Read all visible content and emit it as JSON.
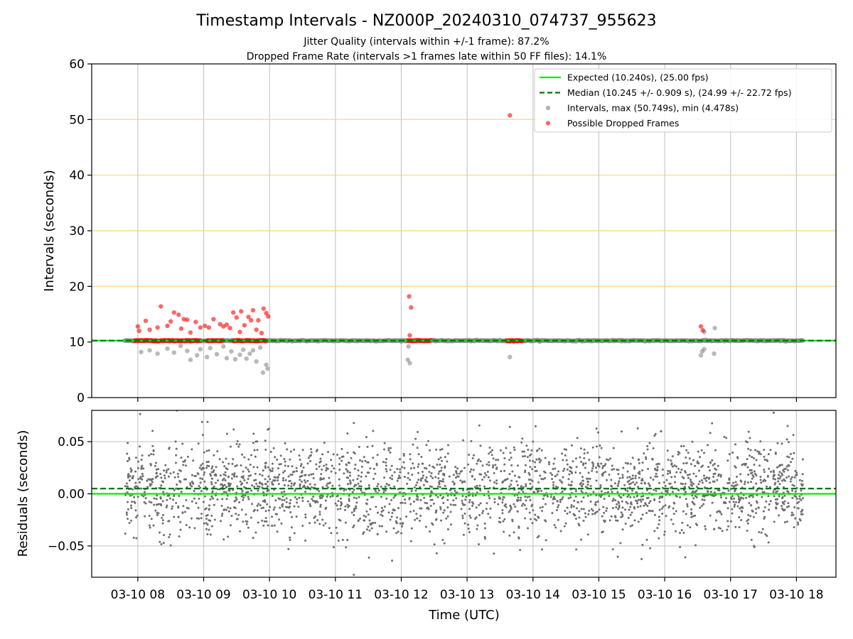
{
  "figure": {
    "title": "Timestamp Intervals - NZ000P_20240310_074737_955623",
    "subtitle1": "Jitter Quality (intervals within +/-1 frame): 87.2%",
    "subtitle2": "Dropped Frame Rate (intervals >1 frames late within 50 FF files): 14.1%",
    "xlabel": "Time (UTC)"
  },
  "chart_data": [
    {
      "type": "scatter",
      "panel": "top",
      "ylabel": "Intervals (seconds)",
      "ylim": [
        0,
        60
      ],
      "yticks": [
        0,
        10,
        20,
        30,
        40,
        50,
        60
      ],
      "reference_lines": [
        {
          "name": "Expected (10.240s), (25.00 fps)",
          "value": 10.24,
          "style": "solid",
          "color": "#00ee00"
        },
        {
          "name": "Median (10.245 +/- 0.909 s), (24.99 +/- 22.72 fps)",
          "value": 10.245,
          "style": "dashed",
          "color": "#007700"
        }
      ],
      "horizontal_grid": [
        20,
        30,
        40,
        50
      ],
      "series": [
        {
          "name": "Intervals, max (50.749s), min (4.478s)",
          "color": "#808080",
          "baseline": 10.24,
          "x_range_hours": [
            7.8,
            18.1
          ],
          "outliers": [
            {
              "x": 8.05,
              "y": 8.2
            },
            {
              "x": 8.18,
              "y": 8.5
            },
            {
              "x": 8.3,
              "y": 7.9
            },
            {
              "x": 8.45,
              "y": 8.8
            },
            {
              "x": 8.55,
              "y": 8.1
            },
            {
              "x": 8.65,
              "y": 9.3
            },
            {
              "x": 8.75,
              "y": 8.4
            },
            {
              "x": 8.8,
              "y": 6.8
            },
            {
              "x": 8.9,
              "y": 7.6
            },
            {
              "x": 8.95,
              "y": 8.7
            },
            {
              "x": 9.05,
              "y": 7.3
            },
            {
              "x": 9.1,
              "y": 8.9
            },
            {
              "x": 9.2,
              "y": 7.8
            },
            {
              "x": 9.3,
              "y": 9.2
            },
            {
              "x": 9.35,
              "y": 7.1
            },
            {
              "x": 9.42,
              "y": 8.3
            },
            {
              "x": 9.48,
              "y": 6.9
            },
            {
              "x": 9.55,
              "y": 7.7
            },
            {
              "x": 9.6,
              "y": 8.6
            },
            {
              "x": 9.65,
              "y": 7.0
            },
            {
              "x": 9.7,
              "y": 7.9
            },
            {
              "x": 9.75,
              "y": 8.5
            },
            {
              "x": 9.8,
              "y": 6.5
            },
            {
              "x": 9.86,
              "y": 9.0
            },
            {
              "x": 9.9,
              "y": 4.5
            },
            {
              "x": 9.95,
              "y": 5.9
            },
            {
              "x": 9.97,
              "y": 5.2
            },
            {
              "x": 12.1,
              "y": 6.8
            },
            {
              "x": 12.13,
              "y": 6.2
            },
            {
              "x": 12.11,
              "y": 9.2
            },
            {
              "x": 13.65,
              "y": 7.3
            },
            {
              "x": 16.55,
              "y": 7.6
            },
            {
              "x": 16.57,
              "y": 8.3
            },
            {
              "x": 16.6,
              "y": 8.7
            },
            {
              "x": 16.6,
              "y": 11.8
            },
            {
              "x": 16.75,
              "y": 7.9
            },
            {
              "x": 16.76,
              "y": 12.5
            }
          ]
        },
        {
          "name": "Possible Dropped Frames",
          "color": "#ff0000",
          "points": [
            {
              "x": 8.0,
              "y": 12.8
            },
            {
              "x": 8.02,
              "y": 12.0
            },
            {
              "x": 8.12,
              "y": 13.8
            },
            {
              "x": 8.18,
              "y": 12.2
            },
            {
              "x": 8.3,
              "y": 12.6
            },
            {
              "x": 8.35,
              "y": 16.4
            },
            {
              "x": 8.45,
              "y": 12.9
            },
            {
              "x": 8.5,
              "y": 13.7
            },
            {
              "x": 8.55,
              "y": 15.3
            },
            {
              "x": 8.62,
              "y": 14.9
            },
            {
              "x": 8.66,
              "y": 12.4
            },
            {
              "x": 8.7,
              "y": 14.1
            },
            {
              "x": 8.75,
              "y": 14.0
            },
            {
              "x": 8.8,
              "y": 11.7
            },
            {
              "x": 8.88,
              "y": 13.6
            },
            {
              "x": 8.95,
              "y": 12.6
            },
            {
              "x": 9.02,
              "y": 12.9
            },
            {
              "x": 9.08,
              "y": 12.6
            },
            {
              "x": 9.15,
              "y": 14.1
            },
            {
              "x": 9.25,
              "y": 13.2
            },
            {
              "x": 9.3,
              "y": 12.8
            },
            {
              "x": 9.35,
              "y": 13.1
            },
            {
              "x": 9.4,
              "y": 12.5
            },
            {
              "x": 9.45,
              "y": 15.3
            },
            {
              "x": 9.5,
              "y": 14.4
            },
            {
              "x": 9.55,
              "y": 11.8
            },
            {
              "x": 9.57,
              "y": 15.5
            },
            {
              "x": 9.62,
              "y": 13.0
            },
            {
              "x": 9.68,
              "y": 14.5
            },
            {
              "x": 9.72,
              "y": 13.9
            },
            {
              "x": 9.75,
              "y": 15.7
            },
            {
              "x": 9.8,
              "y": 12.2
            },
            {
              "x": 9.83,
              "y": 13.9
            },
            {
              "x": 9.88,
              "y": 11.6
            },
            {
              "x": 9.91,
              "y": 16.0
            },
            {
              "x": 9.95,
              "y": 15.2
            },
            {
              "x": 9.98,
              "y": 14.6
            },
            {
              "x": 12.12,
              "y": 18.2
            },
            {
              "x": 12.15,
              "y": 16.2
            },
            {
              "x": 12.13,
              "y": 11.2
            },
            {
              "x": 13.65,
              "y": 50.749
            },
            {
              "x": 16.55,
              "y": 12.8
            },
            {
              "x": 16.58,
              "y": 12.1
            }
          ],
          "dense_bands_at_baseline": [
            [
              7.95,
              8.95
            ],
            [
              9.05,
              9.3
            ],
            [
              9.45,
              9.95
            ],
            [
              12.1,
              12.45
            ],
            [
              13.6,
              13.85
            ]
          ]
        }
      ],
      "legend": {
        "position": "top-right"
      }
    },
    {
      "type": "scatter",
      "panel": "bottom",
      "ylabel": "Residuals (seconds)",
      "ylim": [
        -0.08,
        0.08
      ],
      "yticks": [
        -0.05,
        0.0,
        0.05
      ],
      "ytick_labels": [
        "−0.05",
        "0.00",
        "0.05"
      ],
      "reference_lines": [
        {
          "name": "Expected",
          "value": 0.0,
          "style": "solid",
          "color": "#00ee00"
        },
        {
          "name": "Median",
          "value": 0.005,
          "style": "dashed",
          "color": "#007700"
        }
      ],
      "series": [
        {
          "name": "Residuals",
          "color": "#6e6e6e",
          "x_range_hours": [
            7.8,
            18.1
          ],
          "spread_std": 0.022,
          "offset_mean": 0.005,
          "point_count": 2600
        }
      ]
    }
  ],
  "xaxis": {
    "xlim_hours": [
      7.3,
      18.6
    ],
    "ticks_hours": [
      8,
      9,
      10,
      11,
      12,
      13,
      14,
      15,
      16,
      17,
      18
    ],
    "tick_labels": [
      "03-10 08",
      "03-10 09",
      "03-10 10",
      "03-10 11",
      "03-10 12",
      "03-10 13",
      "03-10 14",
      "03-10 15",
      "03-10 16",
      "03-10 17",
      "03-10 18"
    ]
  }
}
